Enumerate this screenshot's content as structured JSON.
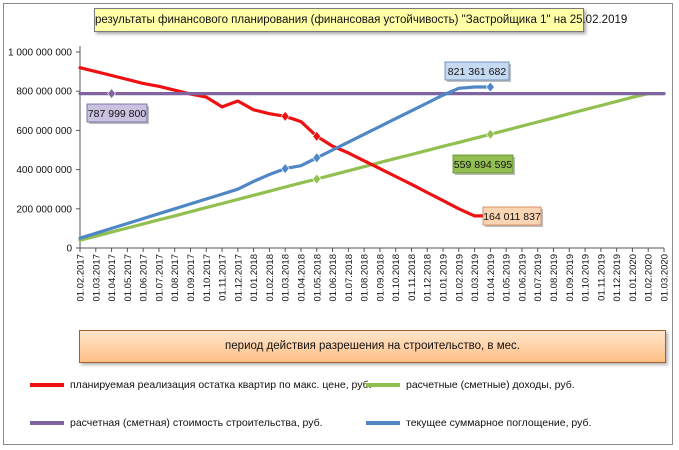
{
  "title": "результаты финансового планирования  (финансовая устойчивость) \"Застройщика  1\" на 25.02.2019",
  "period_label": "период  действия разрешения на строительство, в мес.",
  "colors": {
    "red": "#ee1111",
    "green": "#92c050",
    "purple": "#8064a2",
    "blue": "#4f86c6"
  },
  "chart_data": {
    "type": "line",
    "title": "результаты финансового планирования  (финансовая устойчивость) \"Застройщика  1\" на 25.02.2019",
    "xlabel": "период  действия разрешения на строительство, в мес.",
    "ylabel": "",
    "ylim": [
      0,
      1000000000
    ],
    "y_ticks": [
      "0",
      "200 000 000",
      "400 000 000",
      "600 000 000",
      "800 000 000",
      "1 000 000 000"
    ],
    "grid": false,
    "legend_position": "bottom",
    "x": [
      "01.02.2017",
      "01.03.2017",
      "01.04.2017",
      "01.05.2017",
      "01.06.2017",
      "01.07.2017",
      "01.08.2017",
      "01.09.2017",
      "01.10.2017",
      "01.11.2017",
      "01.12.2017",
      "01.01.2018",
      "01.02.2018",
      "01.03.2018",
      "01.04.2018",
      "01.05.2018",
      "01.06.2018",
      "01.07.2018",
      "01.08.2018",
      "01.09.2018",
      "01.10.2018",
      "01.11.2018",
      "01.12.2018",
      "01.01.2019",
      "01.02.2019",
      "01.03.2019",
      "01.04.2019",
      "01.05.2019",
      "01.06.2019",
      "01.07.2019",
      "01.08.2019",
      "01.09.2019",
      "01.10.2019",
      "01.11.2019",
      "01.12.2019",
      "01.01.2020",
      "01.02.2020",
      "01.03.2020"
    ],
    "series": [
      {
        "name": "планируемая реализация остатка квартир по макс. цене, руб.",
        "color": "#ee1111",
        "values": [
          920000000,
          900000000,
          880000000,
          860000000,
          840000000,
          825000000,
          805000000,
          785000000,
          770000000,
          720000000,
          750000000,
          705000000,
          685000000,
          672000000,
          645000000,
          570000000,
          520000000,
          485000000,
          445000000,
          405000000,
          365000000,
          325000000,
          283000000,
          242000000,
          200000000,
          164011837,
          164011837,
          null,
          null,
          null,
          null,
          null,
          null,
          null,
          null,
          null,
          null,
          null
        ],
        "marker_points": [
          13,
          15,
          26
        ]
      },
      {
        "name": "расчетные (сметные) доходы, руб.",
        "color": "#92c050",
        "values": [
          40000000,
          60000000,
          81000000,
          102000000,
          123000000,
          144000000,
          164000000,
          185000000,
          206000000,
          227000000,
          248000000,
          269000000,
          290000000,
          311000000,
          332000000,
          352000000,
          373000000,
          394000000,
          415000000,
          436000000,
          457000000,
          477000000,
          498000000,
          519000000,
          539000000,
          559894595,
          580000000,
          601000000,
          622000000,
          643000000,
          664000000,
          685000000,
          706000000,
          727000000,
          748000000,
          769000000,
          787999800,
          787999800
        ],
        "marker_points": [
          15,
          26
        ]
      },
      {
        "name": "расчетная (сметная) стоимость строительства, руб.",
        "color": "#8064a2",
        "values": [
          787999800,
          787999800,
          787999800,
          787999800,
          787999800,
          787999800,
          787999800,
          787999800,
          787999800,
          787999800,
          787999800,
          787999800,
          787999800,
          787999800,
          787999800,
          787999800,
          787999800,
          787999800,
          787999800,
          787999800,
          787999800,
          787999800,
          787999800,
          787999800,
          787999800,
          787999800,
          787999800,
          787999800,
          787999800,
          787999800,
          787999800,
          787999800,
          787999800,
          787999800,
          787999800,
          787999800,
          787999800,
          787999800
        ],
        "marker_points": [
          2
        ]
      },
      {
        "name": "текущее суммарное поглощение, руб.",
        "color": "#4f86c6",
        "values": [
          50000000,
          75000000,
          100000000,
          125000000,
          150000000,
          175000000,
          200000000,
          225000000,
          250000000,
          275000000,
          300000000,
          340000000,
          375000000,
          405000000,
          420000000,
          460000000,
          500000000,
          540000000,
          580000000,
          620000000,
          660000000,
          700000000,
          740000000,
          780000000,
          815000000,
          821361682,
          821361682,
          null,
          null,
          null,
          null,
          null,
          null,
          null,
          null,
          null,
          null,
          null
        ],
        "marker_points": [
          13,
          15,
          26
        ]
      }
    ],
    "annotations": [
      {
        "text": "787 999 800",
        "series": 2,
        "style": "purple"
      },
      {
        "text": "821 361 682",
        "series": 3,
        "style": "blue"
      },
      {
        "text": "559 894 595",
        "series": 1,
        "style": "green"
      },
      {
        "text": "164 011 837",
        "series": 0,
        "style": "orange"
      }
    ]
  }
}
